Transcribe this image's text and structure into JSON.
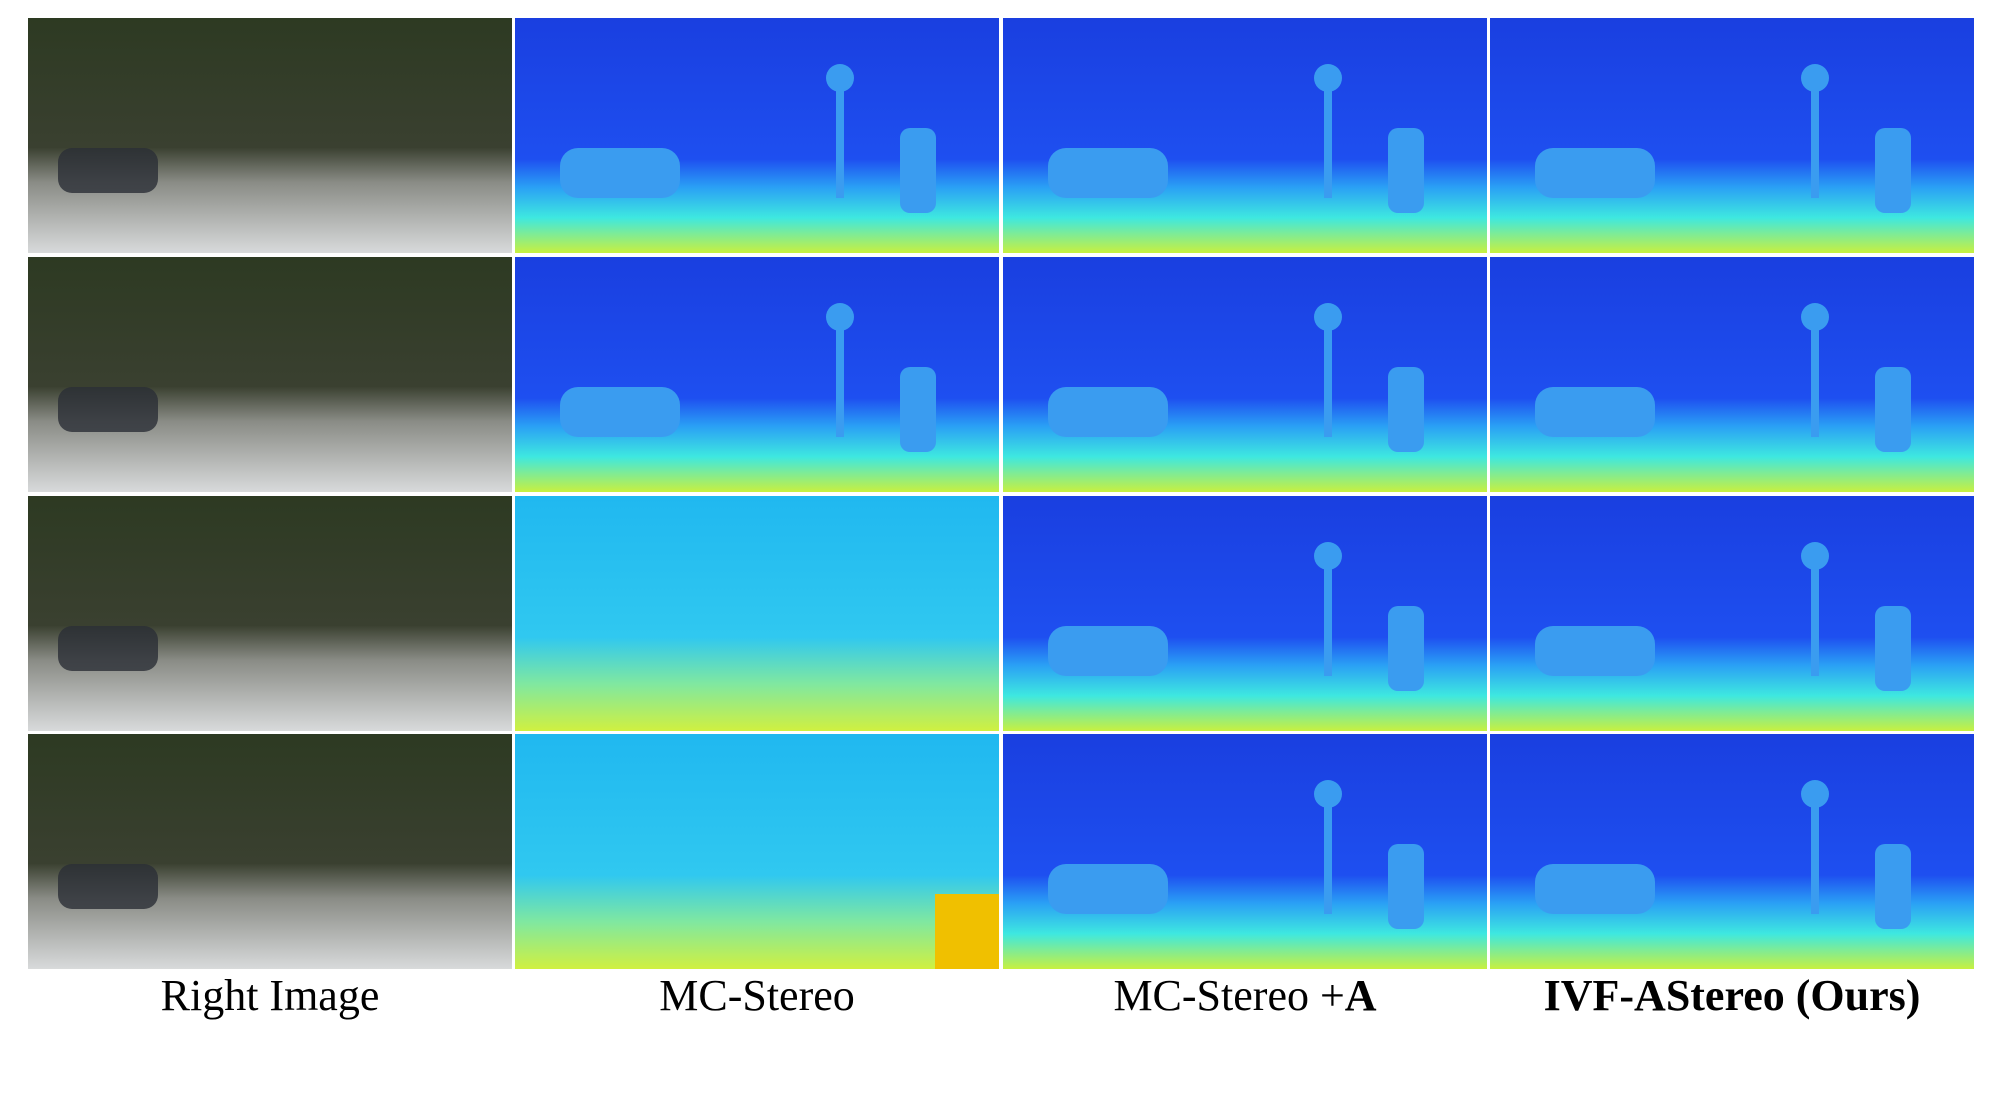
{
  "columns": [
    {
      "text": "Right Image"
    },
    {
      "text": "MC-Stereo"
    },
    {
      "text": "MC-Stereo +",
      "bold": "A"
    },
    {
      "text": "IVF-AStereo (Ours)"
    }
  ]
}
